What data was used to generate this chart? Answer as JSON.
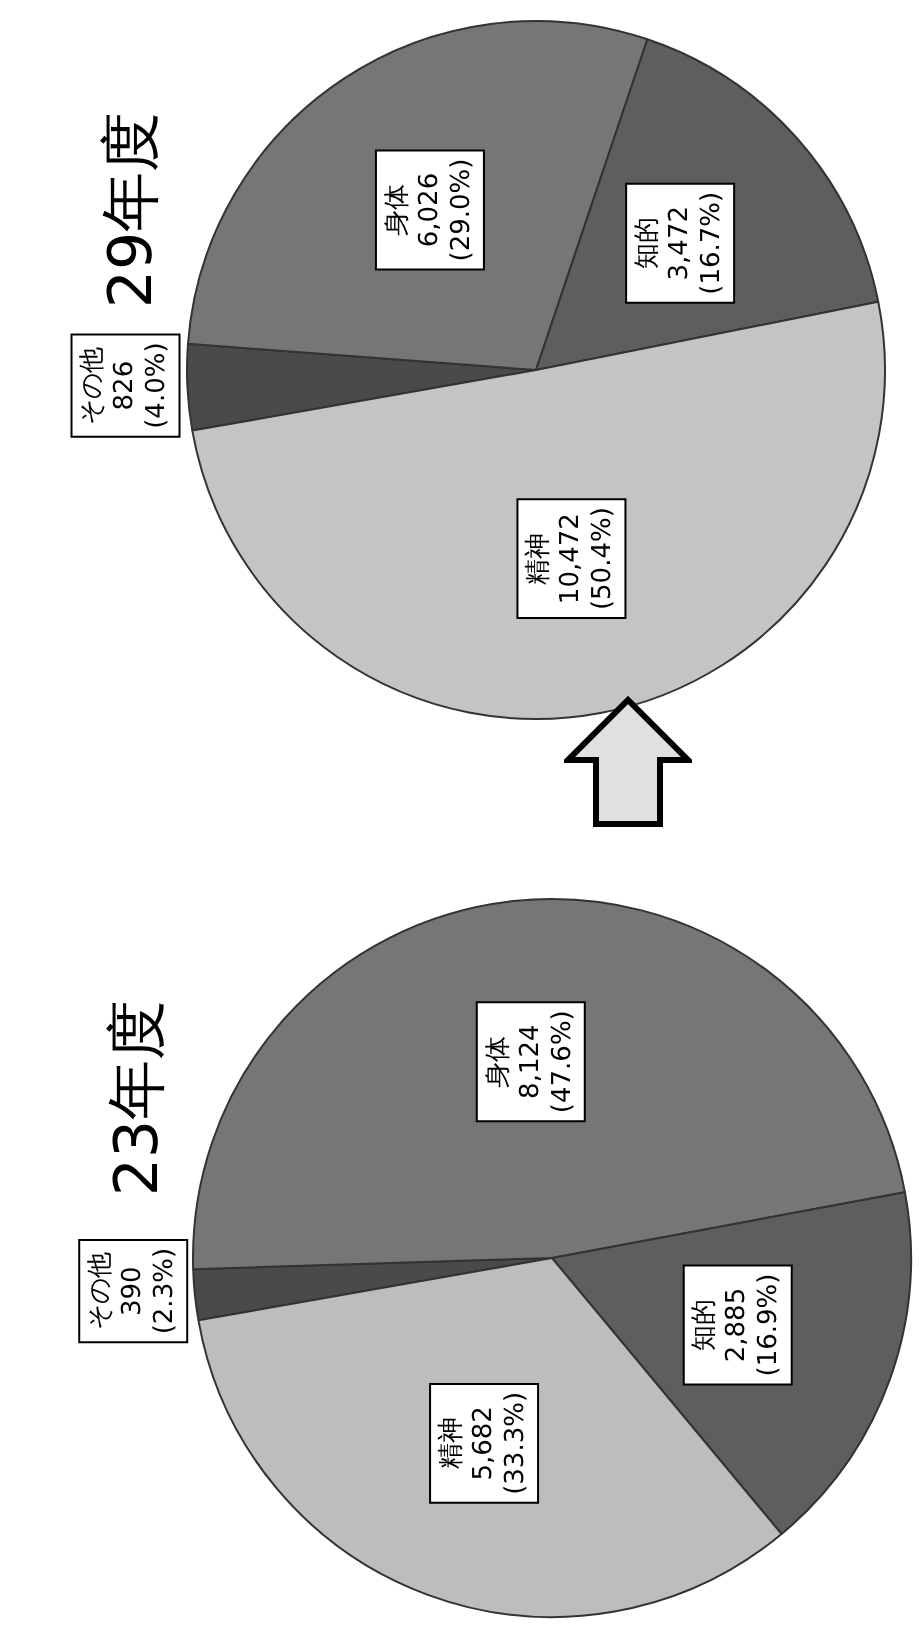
{
  "chart_data": [
    {
      "type": "pie",
      "title": "23年度",
      "categories": [
        "その他",
        "身体",
        "知的",
        "精神"
      ],
      "values": [
        390,
        8124,
        2885,
        5682
      ],
      "colors": [
        "#4a4a4a",
        "#767676",
        "#5e5e5e",
        "#bdbdbd"
      ],
      "value_labels": [
        "390 (2.3%)",
        "8,124 (47.6%)",
        "2,885 (16.9%)",
        "5,682 (33.3%)"
      ]
    },
    {
      "type": "pie",
      "title": "29年度",
      "categories": [
        "その他",
        "身体",
        "知的",
        "精神"
      ],
      "values": [
        826,
        6026,
        3472,
        10472
      ],
      "colors": [
        "#4a4a4a",
        "#767676",
        "#5e5e5e",
        "#c4c4c4"
      ],
      "value_labels": [
        "826 (4.0%)",
        "6,026 (29.0%)",
        "3,472 (16.7%)",
        "10,472 (50.4%)"
      ]
    }
  ]
}
